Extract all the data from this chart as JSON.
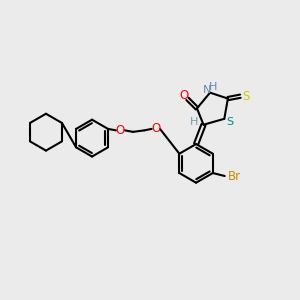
{
  "background_color": "#ebebeb",
  "atom_colors": {
    "C": "#000000",
    "H": "#7a9aaa",
    "O": "#ff0000",
    "N": "#6688aa",
    "S_thione": "#cccc00",
    "S_ring": "#008888",
    "Br": "#cc8800"
  },
  "bond_color": "#000000",
  "bond_width": 1.5,
  "dbo": 0.055
}
